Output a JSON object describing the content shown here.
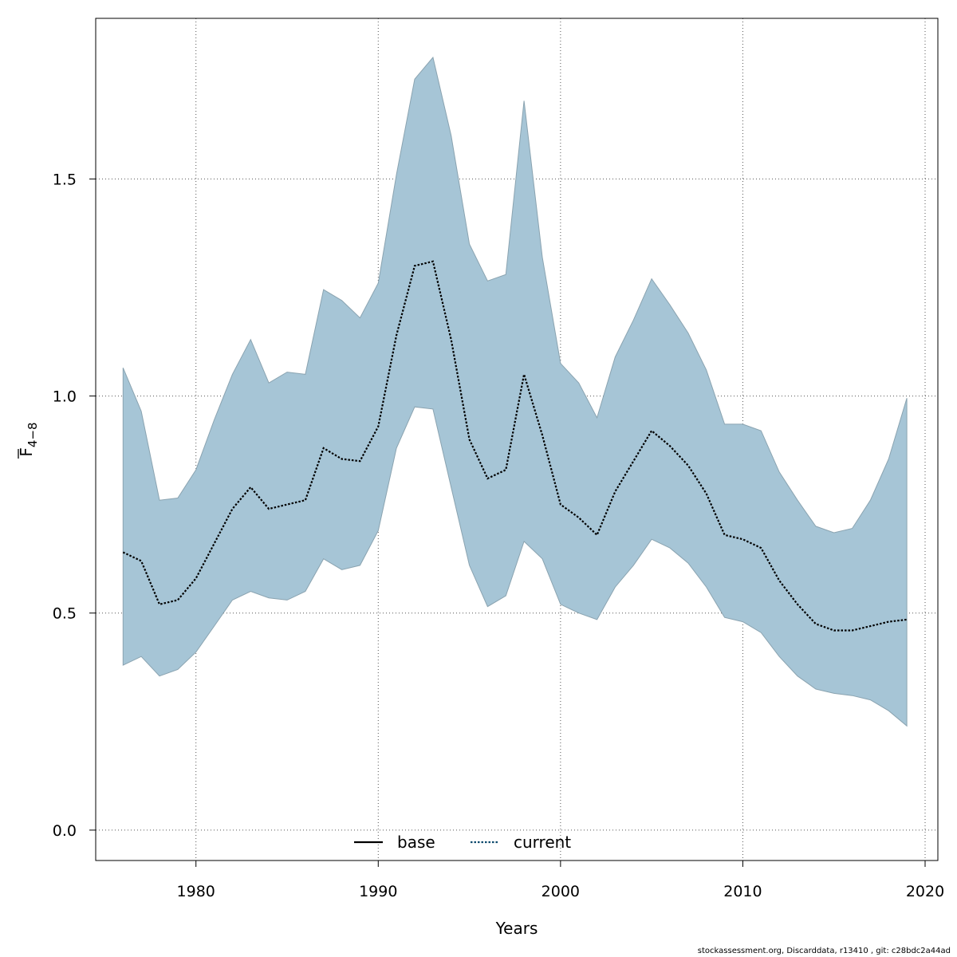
{
  "chart_data": {
    "type": "line",
    "xlabel": "Years",
    "ylabel_main": "F",
    "ylabel_sub": "4−8",
    "xlim": [
      1974.5,
      2020.7
    ],
    "ylim": [
      -0.07,
      1.87
    ],
    "x_ticks": [
      1980,
      1990,
      2000,
      2010,
      2020
    ],
    "y_ticks": [
      0.0,
      0.5,
      1.0,
      1.5
    ],
    "y_tick_labels": [
      "0.0",
      "0.5",
      "1.0",
      "1.5"
    ],
    "grid": true,
    "legend_position": "bottom-center",
    "legend": [
      {
        "label": "base",
        "style": "solid",
        "color": "#000000"
      },
      {
        "label": "current",
        "style": "dotted",
        "color": "#0e4a6e"
      }
    ],
    "band_color": "#a6c5d6",
    "years": [
      1976,
      1977,
      1978,
      1979,
      1980,
      1981,
      1982,
      1983,
      1984,
      1985,
      1986,
      1987,
      1988,
      1989,
      1990,
      1991,
      1992,
      1993,
      1994,
      1995,
      1996,
      1997,
      1998,
      1999,
      2000,
      2001,
      2002,
      2003,
      2004,
      2005,
      2006,
      2007,
      2008,
      2009,
      2010,
      2011,
      2012,
      2013,
      2014,
      2015,
      2016,
      2017,
      2018,
      2019
    ],
    "series": [
      {
        "name": "current",
        "values": [
          0.64,
          0.62,
          0.52,
          0.53,
          0.58,
          0.66,
          0.74,
          0.79,
          0.74,
          0.75,
          0.76,
          0.88,
          0.855,
          0.85,
          0.93,
          1.14,
          1.3,
          1.31,
          1.13,
          0.9,
          0.81,
          0.83,
          1.05,
          0.91,
          0.75,
          0.72,
          0.68,
          0.78,
          0.85,
          0.92,
          0.885,
          0.84,
          0.775,
          0.68,
          0.67,
          0.65,
          0.575,
          0.52,
          0.475,
          0.46,
          0.46,
          0.47,
          0.48,
          0.485
        ],
        "lower": [
          0.38,
          0.4,
          0.355,
          0.37,
          0.41,
          0.47,
          0.53,
          0.55,
          0.535,
          0.53,
          0.55,
          0.625,
          0.6,
          0.61,
          0.69,
          0.88,
          0.975,
          0.97,
          0.79,
          0.61,
          0.515,
          0.54,
          0.665,
          0.625,
          0.52,
          0.5,
          0.485,
          0.56,
          0.61,
          0.67,
          0.65,
          0.615,
          0.56,
          0.49,
          0.48,
          0.455,
          0.4,
          0.355,
          0.325,
          0.315,
          0.31,
          0.3,
          0.275,
          0.24
        ],
        "upper": [
          1.065,
          0.965,
          0.76,
          0.765,
          0.83,
          0.945,
          1.05,
          1.13,
          1.03,
          1.055,
          1.05,
          1.245,
          1.22,
          1.18,
          1.26,
          1.51,
          1.73,
          1.78,
          1.6,
          1.35,
          1.265,
          1.28,
          1.68,
          1.32,
          1.075,
          1.03,
          0.95,
          1.09,
          1.175,
          1.27,
          1.21,
          1.145,
          1.06,
          0.935,
          0.935,
          0.92,
          0.825,
          0.76,
          0.7,
          0.685,
          0.695,
          0.76,
          0.855,
          0.995
        ]
      }
    ]
  },
  "footer": "stockassessment.org, Discarddata, r13410 , git: c28bdc2a44ad"
}
